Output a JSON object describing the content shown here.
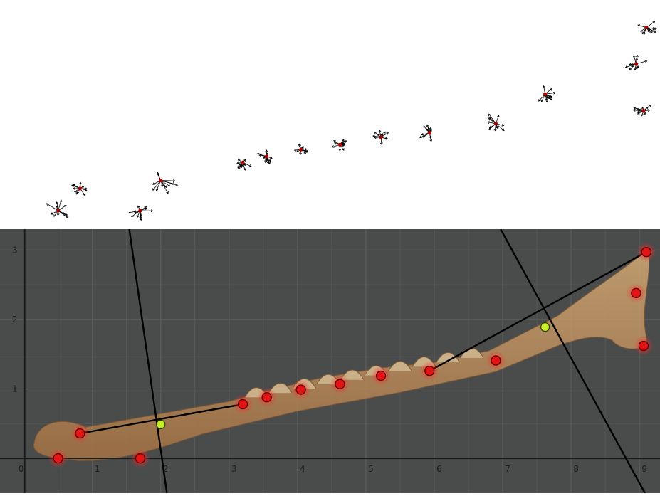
{
  "figure": {
    "top_panel": {
      "description_kind": "landmark-variation-vectors",
      "cluster_scale": [
        1.3,
        1.0,
        1.2,
        0.9,
        0.9,
        0.7,
        0.8,
        0.9,
        1.0,
        1.3,
        1.0,
        1.0,
        1.1,
        1.6
      ],
      "colors": {
        "centroid": "#b00000",
        "vector": "#000000",
        "background": "#ffffff"
      }
    },
    "bottom_panel": {
      "x_ticks": [
        "0",
        "1",
        "2",
        "3",
        "4",
        "5",
        "6",
        "7",
        "8",
        "9"
      ],
      "y_ticks": [
        "1",
        "2",
        "3"
      ],
      "colors": {
        "background": "#4a4b4b",
        "grid": "#5e5f5f",
        "axis": "#1a1a1a",
        "line": "#000000",
        "landmark": "#e31414",
        "landmark_glow": "#ff2a2a",
        "midpoint": "#c8f02a",
        "bone": "#b98a55"
      }
    }
  },
  "chart_data": {
    "type": "scatter",
    "xlim": [
      -0.35,
      9.3
    ],
    "ylim": [
      -0.5,
      3.3
    ],
    "grid": true,
    "landmarks": [
      {
        "x": 0.5,
        "y": 0.0
      },
      {
        "x": 0.82,
        "y": 0.36
      },
      {
        "x": 1.7,
        "y": 0.0
      },
      {
        "x": 3.2,
        "y": 0.78
      },
      {
        "x": 3.55,
        "y": 0.88
      },
      {
        "x": 4.05,
        "y": 0.99
      },
      {
        "x": 4.62,
        "y": 1.07
      },
      {
        "x": 5.22,
        "y": 1.19
      },
      {
        "x": 5.93,
        "y": 1.26
      },
      {
        "x": 6.9,
        "y": 1.41
      },
      {
        "x": 9.06,
        "y": 1.62
      },
      {
        "x": 8.95,
        "y": 2.38
      },
      {
        "x": 9.1,
        "y": 2.97
      }
    ],
    "midpoints": [
      {
        "x": 2.0,
        "y": 0.49
      },
      {
        "x": 7.62,
        "y": 1.89
      }
    ],
    "segments": [
      {
        "from": [
          0.82,
          0.36
        ],
        "to": [
          3.2,
          0.78
        ]
      },
      {
        "from": [
          5.93,
          1.26
        ],
        "to": [
          9.1,
          2.97
        ]
      }
    ],
    "perpendiculars": [
      {
        "from": [
          1.54,
          3.3
        ],
        "to": [
          2.09,
          -0.5
        ]
      },
      {
        "from": [
          6.97,
          3.3
        ],
        "to": [
          9.08,
          -0.5
        ]
      }
    ]
  }
}
